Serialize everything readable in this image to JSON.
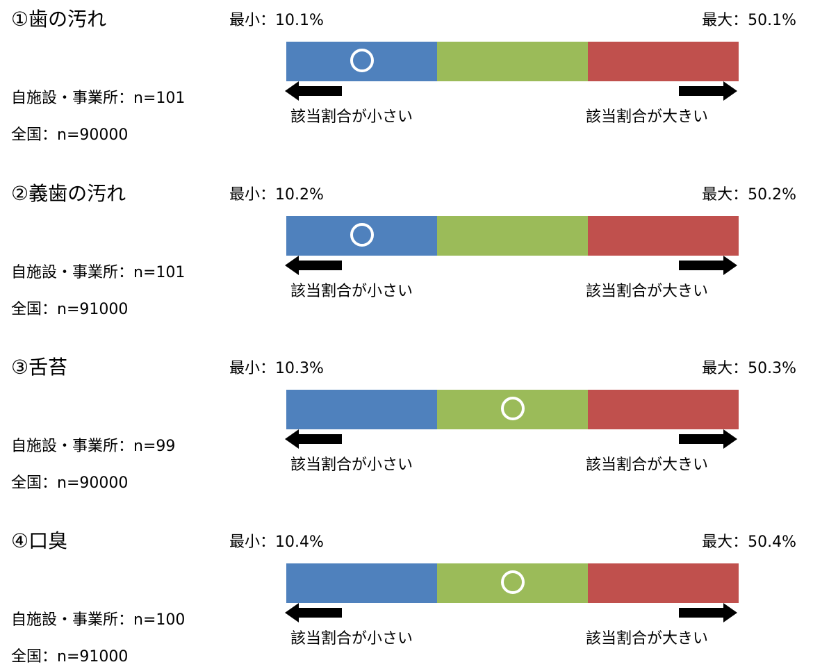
{
  "colors": {
    "low": "#4f81bd",
    "mid": "#9bbb59",
    "high": "#c0504d",
    "marker": "#ffffff",
    "arrow": "#000000"
  },
  "items": [
    {
      "title": "①歯の汚れ",
      "min_label": "最小：10.1%",
      "max_label": "最大：50.1%",
      "marker_segment": "low",
      "facility_label": "自施設・事業所：n=101",
      "national_label": "全国：n=90000",
      "small_label": "該当割合が小さい",
      "large_label": "該当割合が大きい"
    },
    {
      "title": "②義歯の汚れ",
      "min_label": "最小：10.2%",
      "max_label": "最大：50.2%",
      "marker_segment": "low",
      "facility_label": "自施設・事業所：n=101",
      "national_label": "全国：n=91000",
      "small_label": "該当割合が小さい",
      "large_label": "該当割合が大きい"
    },
    {
      "title": "③舌苔",
      "min_label": "最小：10.3%",
      "max_label": "最大：50.3%",
      "marker_segment": "mid",
      "facility_label": "自施設・事業所：n=99",
      "national_label": "全国：n=90000",
      "small_label": "該当割合が小さい",
      "large_label": "該当割合が大きい"
    },
    {
      "title": "④口臭",
      "min_label": "最小：10.4%",
      "max_label": "最大：50.4%",
      "marker_segment": "mid",
      "facility_label": "自施設・事業所：n=100",
      "national_label": "全国：n=91000",
      "small_label": "該当割合が小さい",
      "large_label": "該当割合が大きい"
    }
  ]
}
